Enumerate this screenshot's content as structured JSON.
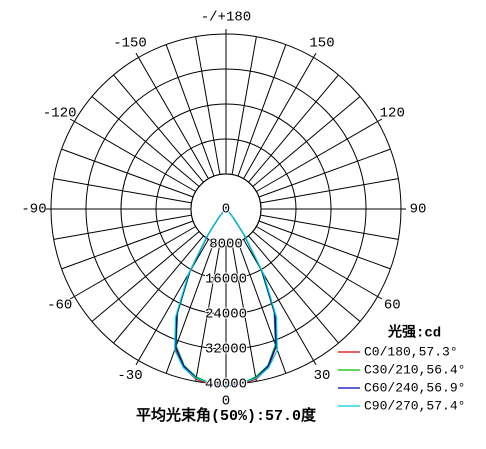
{
  "chart_data": {
    "type": "polar",
    "rlim": [
      0,
      40000
    ],
    "rticks": [
      0,
      8000,
      16000,
      24000,
      32000,
      40000
    ],
    "thetaticks": [
      {
        "value": 180,
        "label": "-/+180"
      },
      150,
      -150,
      120,
      -120,
      90,
      -90,
      60,
      -60,
      30,
      -30,
      0
    ],
    "theta": [
      -90,
      -80,
      -70,
      -60,
      -50,
      -45,
      -40,
      -35,
      -30,
      -25,
      -20,
      -15,
      -10,
      -5,
      0,
      5,
      10,
      15,
      20,
      25,
      30,
      35,
      40,
      45,
      50,
      60,
      70,
      80,
      90
    ],
    "legend_title": "光强:cd",
    "series": [
      {
        "name": "C0/180,57.3°",
        "color": "#e00000",
        "values": [
          0,
          20,
          60,
          120,
          350,
          900,
          2800,
          7500,
          17000,
          27000,
          34000,
          37500,
          39500,
          40300,
          40500,
          40200,
          39500,
          37500,
          33500,
          27000,
          17000,
          7500,
          2800,
          900,
          350,
          120,
          60,
          20,
          0
        ]
      },
      {
        "name": "C30/210,56.4°",
        "color": "#00c000",
        "values": [
          0,
          20,
          50,
          100,
          300,
          800,
          2600,
          7200,
          16300,
          26200,
          33300,
          37000,
          39000,
          40000,
          40300,
          40000,
          39000,
          37000,
          33000,
          26000,
          16000,
          7000,
          2500,
          800,
          300,
          100,
          50,
          20,
          0
        ]
      },
      {
        "name": "C60/240,56.9°",
        "color": "#0000c0",
        "values": [
          0,
          20,
          50,
          110,
          320,
          850,
          2700,
          7300,
          16600,
          26500,
          33600,
          37200,
          39200,
          40100,
          40400,
          40100,
          39200,
          37200,
          33400,
          26400,
          16500,
          7200,
          2600,
          850,
          320,
          110,
          50,
          20,
          0
        ]
      },
      {
        "name": "C90/270,57.4°",
        "color": "#00d0e0",
        "values": [
          0,
          20,
          60,
          120,
          360,
          900,
          2900,
          7600,
          17200,
          27300,
          34300,
          37600,
          39300,
          40000,
          40200,
          40000,
          39300,
          37600,
          34300,
          27300,
          17200,
          7600,
          2900,
          900,
          360,
          120,
          60,
          20,
          0
        ]
      }
    ],
    "annotation": "平均光束角(50%):57.0度"
  }
}
